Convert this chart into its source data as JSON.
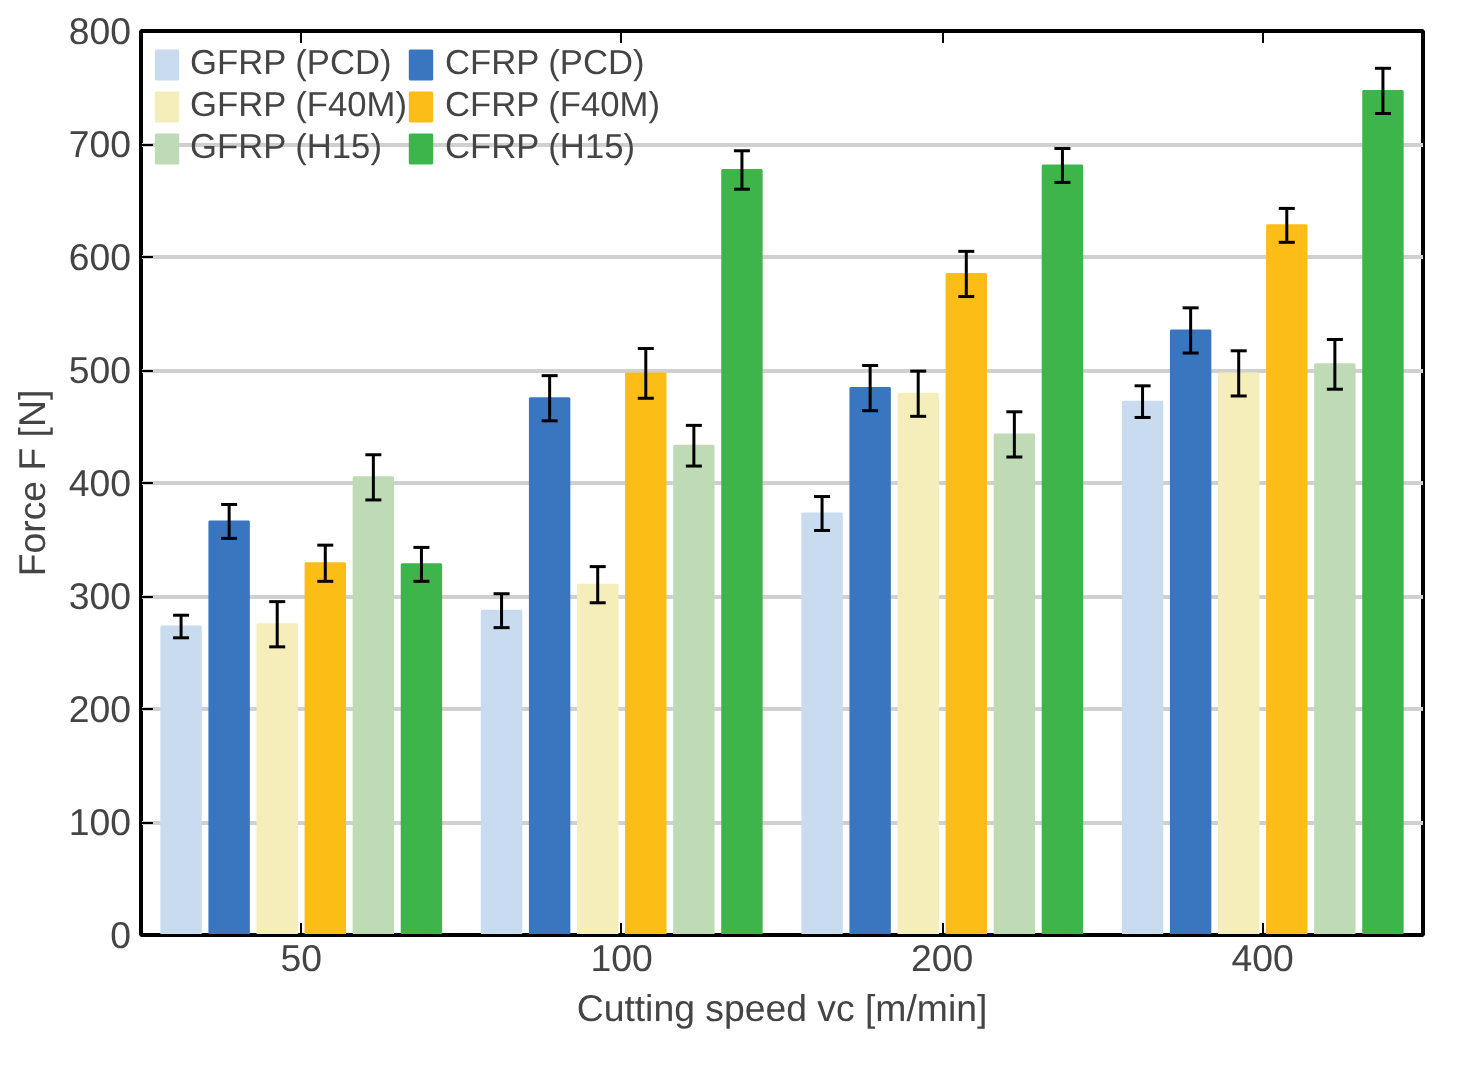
{
  "chart_data": {
    "type": "bar",
    "xlabel": "Cutting speed vc [m/min]",
    "ylabel": "Force F [N]",
    "categories": [
      "50",
      "100",
      "200",
      "400"
    ],
    "series": [
      {
        "name": "GFRP (PCD)",
        "color": "#c9dcef",
        "values": [
          273,
          287,
          373,
          472
        ],
        "errors": [
          10,
          15,
          15,
          14
        ]
      },
      {
        "name": "CFRP (PCD)",
        "color": "#3a75c0",
        "values": [
          366,
          475,
          484,
          535
        ],
        "errors": [
          15,
          20,
          20,
          20
        ]
      },
      {
        "name": "GFRP (F40M)",
        "color": "#f5edba",
        "values": [
          275,
          310,
          479,
          497
        ],
        "errors": [
          20,
          16,
          20,
          20
        ]
      },
      {
        "name": "CFRP (F40M)",
        "color": "#fbbd16",
        "values": [
          329,
          497,
          585,
          628
        ],
        "errors": [
          16,
          22,
          20,
          15
        ]
      },
      {
        "name": "GFRP (H15)",
        "color": "#bfdbb6",
        "values": [
          405,
          433,
          443,
          505
        ],
        "errors": [
          20,
          18,
          20,
          22
        ]
      },
      {
        "name": "CFRP (H15)",
        "color": "#3db54a",
        "values": [
          328,
          677,
          681,
          747
        ],
        "errors": [
          15,
          17,
          15,
          20
        ]
      }
    ],
    "ylim": [
      0,
      800
    ],
    "yticks": [
      0,
      100,
      200,
      300,
      400,
      500,
      600,
      700,
      800
    ],
    "grid": "y",
    "legend": "top left"
  }
}
